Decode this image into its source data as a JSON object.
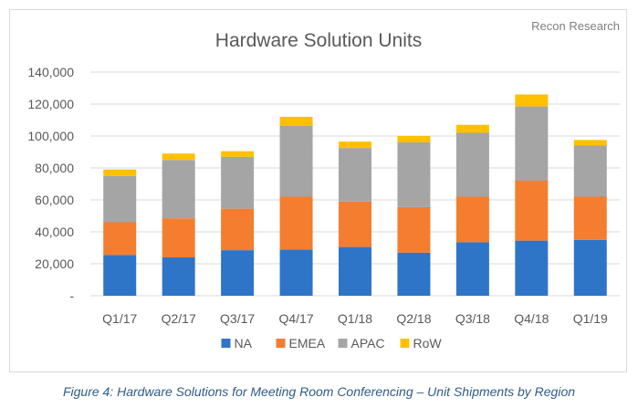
{
  "chart_data": {
    "type": "bar",
    "stacked": true,
    "title": "Hardware Solution Units",
    "source": "Recon Research",
    "categories": [
      "Q1/17",
      "Q2/17",
      "Q3/17",
      "Q4/17",
      "Q1/18",
      "Q2/18",
      "Q3/18",
      "Q4/18",
      "Q1/19"
    ],
    "series": [
      {
        "name": "NA",
        "color": "#2e75c8",
        "values": [
          25500,
          24000,
          28500,
          29000,
          30500,
          27000,
          33500,
          34500,
          35000
        ]
      },
      {
        "name": "EMEA",
        "color": "#f47d30",
        "values": [
          20500,
          24500,
          26000,
          33000,
          28500,
          28500,
          28500,
          37500,
          27000
        ]
      },
      {
        "name": "APAC",
        "color": "#a5a5a5",
        "values": [
          29000,
          36500,
          32500,
          44500,
          33500,
          40500,
          40000,
          46500,
          32000
        ]
      },
      {
        "name": "RoW",
        "color": "#ffc000",
        "values": [
          4000,
          4000,
          3500,
          5500,
          4000,
          4000,
          5000,
          7500,
          3500
        ]
      }
    ],
    "ylim": [
      0,
      140000
    ],
    "yticks": [
      0,
      20000,
      40000,
      60000,
      80000,
      100000,
      120000,
      140000
    ],
    "ytick_labels": [
      "-",
      "20,000",
      "40,000",
      "60,000",
      "80,000",
      "100,000",
      "120,000",
      "140,000"
    ],
    "grid": true,
    "legend_position": "bottom"
  },
  "caption": "Figure 4: Hardware Solutions for Meeting Room Conferencing – Unit Shipments by Region"
}
